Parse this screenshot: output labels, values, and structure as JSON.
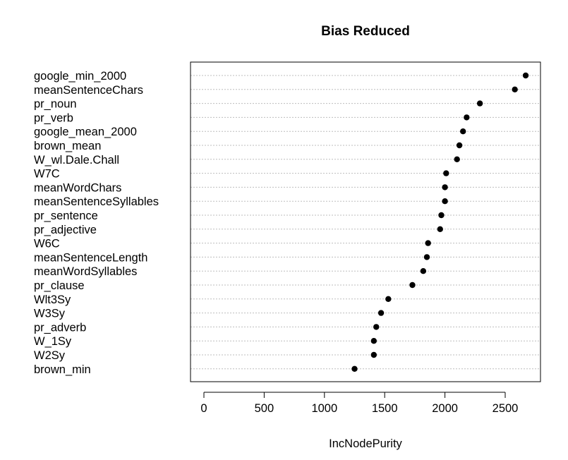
{
  "chart_data": {
    "type": "scatter",
    "title": "Bias Reduced",
    "xlabel": "IncNodePurity",
    "ylabel": "",
    "categories": [
      "google_min_2000",
      "meanSentenceChars",
      "pr_noun",
      "pr_verb",
      "google_mean_2000",
      "brown_mean",
      "W_wl.Dale.Chall",
      "W7C",
      "meanWordChars",
      "meanSentenceSyllables",
      "pr_sentence",
      "pr_adjective",
      "W6C",
      "meanSentenceLength",
      "meanWordSyllables",
      "pr_clause",
      "Wlt3Sy",
      "W3Sy",
      "pr_adverb",
      "W_1Sy",
      "W2Sy",
      "brown_min"
    ],
    "values": [
      2670,
      2580,
      2290,
      2180,
      2150,
      2120,
      2100,
      2010,
      2000,
      2000,
      1970,
      1960,
      1860,
      1850,
      1820,
      1730,
      1530,
      1470,
      1430,
      1410,
      1410,
      1250
    ],
    "xticks": [
      0,
      500,
      1000,
      1500,
      2000,
      2500
    ],
    "xlim": [
      -100,
      2790
    ],
    "grid": "dotted-horizontal",
    "legend": "none"
  }
}
